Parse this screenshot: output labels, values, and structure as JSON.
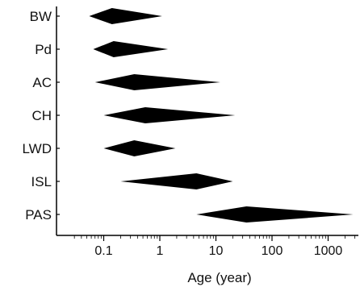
{
  "chart_data": {
    "type": "range",
    "title": "",
    "xlabel": "Age (year)",
    "ylabel": "",
    "x_scale": "log",
    "xlim": [
      0.03,
      3000
    ],
    "x_ticks": [
      {
        "value": 0.1,
        "label": "0.1"
      },
      {
        "value": 1,
        "label": "1"
      },
      {
        "value": 10,
        "label": "10"
      },
      {
        "value": 100,
        "label": "100"
      },
      {
        "value": 1000,
        "label": "1000"
      }
    ],
    "categories": [
      "BW",
      "Pd",
      "AC",
      "CH",
      "LWD",
      "ISL",
      "PAS"
    ],
    "ranges": [
      {
        "category": "BW",
        "min": 0.055,
        "peak": 0.14,
        "max": 1.1
      },
      {
        "category": "Pd",
        "min": 0.065,
        "peak": 0.15,
        "max": 1.4
      },
      {
        "category": "AC",
        "min": 0.07,
        "peak": 0.35,
        "max": 12
      },
      {
        "category": "CH",
        "min": 0.1,
        "peak": 0.55,
        "max": 22
      },
      {
        "category": "LWD",
        "min": 0.1,
        "peak": 0.35,
        "max": 1.9
      },
      {
        "category": "ISL",
        "min": 0.2,
        "peak": 4.5,
        "max": 20
      },
      {
        "category": "PAS",
        "min": 4.5,
        "peak": 35,
        "max": 2800
      }
    ],
    "grid": false,
    "color": "#000000"
  }
}
